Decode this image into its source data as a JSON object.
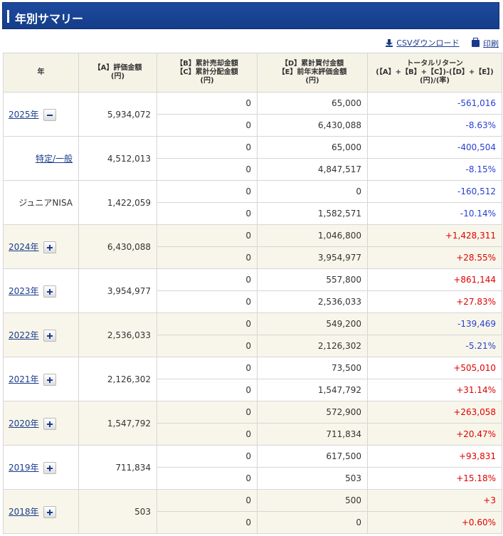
{
  "header": {
    "title": "年別サマリー"
  },
  "actions": {
    "csv_label": "CSVダウンロード",
    "print_label": "印刷"
  },
  "table": {
    "headers": [
      "年",
      "【A】評価金額\n(円)",
      "【B】累計売却金額\n【C】累計分配金額\n(円)",
      "【D】累計買付金額\n【E】前年末評価金額\n(円)",
      "トータルリターン\n(【A】+【B】+【C】)-(【D】+【E】)\n(円)/(率)"
    ],
    "groups": [
      {
        "label": "2025年",
        "link": true,
        "toggle": "minus",
        "a": "5,934,072",
        "bc": [
          "0",
          "0"
        ],
        "de": [
          "65,000",
          "6,430,088"
        ],
        "ret": [
          "-561,016",
          "-8.63%"
        ],
        "tone": "neg"
      },
      {
        "label": "特定/一般",
        "link": true,
        "sub": true,
        "a": "4,512,013",
        "bc": [
          "0",
          "0"
        ],
        "de": [
          "65,000",
          "4,847,517"
        ],
        "ret": [
          "-400,504",
          "-8.15%"
        ],
        "tone": "neg"
      },
      {
        "label": "ジュニアNISA",
        "link": false,
        "sub": true,
        "a": "1,422,059",
        "bc": [
          "0",
          "0"
        ],
        "de": [
          "0",
          "1,582,571"
        ],
        "ret": [
          "-160,512",
          "-10.14%"
        ],
        "tone": "neg"
      },
      {
        "label": "2024年",
        "link": true,
        "toggle": "plus",
        "a": "6,430,088",
        "bc": [
          "0",
          "0"
        ],
        "de": [
          "1,046,800",
          "3,954,977"
        ],
        "ret": [
          "+1,428,311",
          "+28.55%"
        ],
        "tone": "pos"
      },
      {
        "label": "2023年",
        "link": true,
        "toggle": "plus",
        "a": "3,954,977",
        "bc": [
          "0",
          "0"
        ],
        "de": [
          "557,800",
          "2,536,033"
        ],
        "ret": [
          "+861,144",
          "+27.83%"
        ],
        "tone": "pos"
      },
      {
        "label": "2022年",
        "link": true,
        "toggle": "plus",
        "a": "2,536,033",
        "bc": [
          "0",
          "0"
        ],
        "de": [
          "549,200",
          "2,126,302"
        ],
        "ret": [
          "-139,469",
          "-5.21%"
        ],
        "tone": "neg"
      },
      {
        "label": "2021年",
        "link": true,
        "toggle": "plus",
        "a": "2,126,302",
        "bc": [
          "0",
          "0"
        ],
        "de": [
          "73,500",
          "1,547,792"
        ],
        "ret": [
          "+505,010",
          "+31.14%"
        ],
        "tone": "pos"
      },
      {
        "label": "2020年",
        "link": true,
        "toggle": "plus",
        "a": "1,547,792",
        "bc": [
          "0",
          "0"
        ],
        "de": [
          "572,900",
          "711,834"
        ],
        "ret": [
          "+263,058",
          "+20.47%"
        ],
        "tone": "pos"
      },
      {
        "label": "2019年",
        "link": true,
        "toggle": "plus",
        "a": "711,834",
        "bc": [
          "0",
          "0"
        ],
        "de": [
          "617,500",
          "503"
        ],
        "ret": [
          "+93,831",
          "+15.18%"
        ],
        "tone": "pos"
      },
      {
        "label": "2018年",
        "link": true,
        "toggle": "plus",
        "a": "503",
        "bc": [
          "0",
          "0"
        ],
        "de": [
          "500",
          "0"
        ],
        "ret": [
          "+3",
          "+0.60%"
        ],
        "tone": "pos"
      }
    ]
  },
  "colors": {
    "header_bg": "#1e4a9e",
    "negative": "#2a3fd0",
    "positive": "#e00000",
    "row_alt": "#f8f6ea",
    "thead_bg": "#f5f3e6"
  },
  "icons": {
    "csv": "download-icon",
    "print": "printer-icon",
    "expand": "plus-icon",
    "collapse": "minus-icon"
  }
}
